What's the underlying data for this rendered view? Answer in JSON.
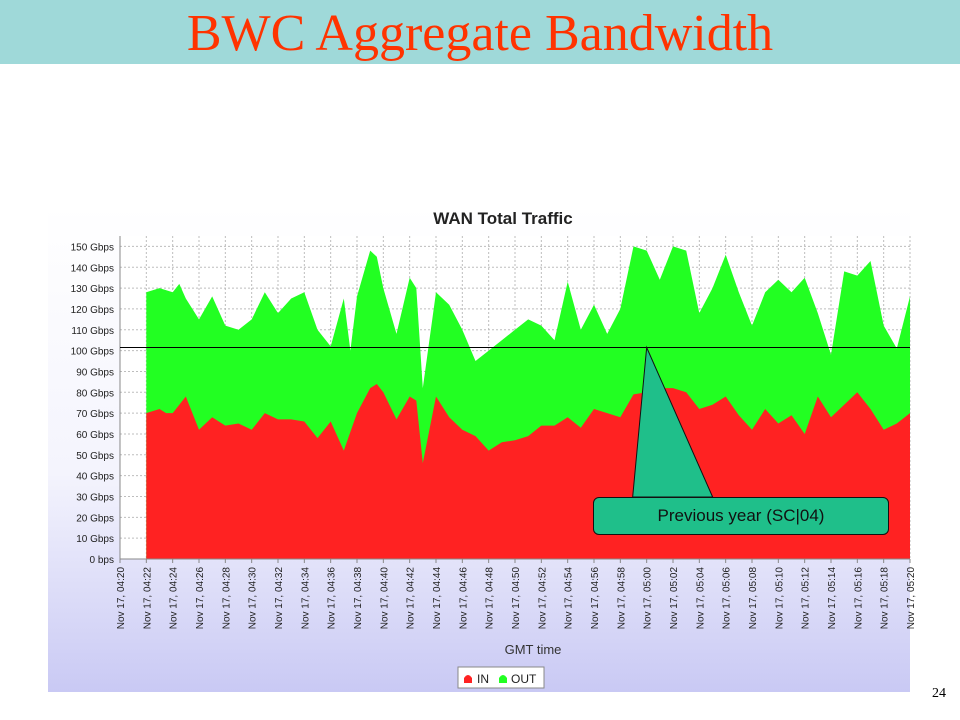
{
  "slide": {
    "title": "BWC Aggregate Bandwidth",
    "page_number": "24"
  },
  "annotation": {
    "label": "Previous year (SC|04)",
    "line_value_gbps": 101.5,
    "pointer_time": "05:00"
  },
  "colors": {
    "in": "#ff2222",
    "out": "#22ff22",
    "title": "#ff3300",
    "title_band": "#9fd9d9",
    "callout": "#1fbf8a"
  },
  "chart_data": {
    "type": "area",
    "stacked": true,
    "title": "WAN Total Traffic",
    "xlabel": "GMT time",
    "ylabel": "",
    "ylim": [
      0,
      155
    ],
    "yticks": [
      {
        "value": 0,
        "label": "0 bps"
      },
      {
        "value": 10,
        "label": "10 Gbps"
      },
      {
        "value": 20,
        "label": "20 Gbps"
      },
      {
        "value": 30,
        "label": "30 Gbps"
      },
      {
        "value": 40,
        "label": "40 Gbps"
      },
      {
        "value": 50,
        "label": "50 Gbps"
      },
      {
        "value": 60,
        "label": "60 Gbps"
      },
      {
        "value": 70,
        "label": "70 Gbps"
      },
      {
        "value": 80,
        "label": "80 Gbps"
      },
      {
        "value": 90,
        "label": "90 Gbps"
      },
      {
        "value": 100,
        "label": "100 Gbps"
      },
      {
        "value": 110,
        "label": "110 Gbps"
      },
      {
        "value": 120,
        "label": "120 Gbps"
      },
      {
        "value": 130,
        "label": "130 Gbps"
      },
      {
        "value": 140,
        "label": "140 Gbps"
      },
      {
        "value": 150,
        "label": "150 Gbps"
      }
    ],
    "xrange": [
      "04:20",
      "05:20"
    ],
    "xticks": [
      {
        "value": "04:20",
        "label": "Nov 17, 04:20"
      },
      {
        "value": "04:22",
        "label": "Nov 17, 04:22"
      },
      {
        "value": "04:24",
        "label": "Nov 17, 04:24"
      },
      {
        "value": "04:26",
        "label": "Nov 17, 04:26"
      },
      {
        "value": "04:28",
        "label": "Nov 17, 04:28"
      },
      {
        "value": "04:30",
        "label": "Nov 17, 04:30"
      },
      {
        "value": "04:32",
        "label": "Nov 17, 04:32"
      },
      {
        "value": "04:34",
        "label": "Nov 17, 04:34"
      },
      {
        "value": "04:36",
        "label": "Nov 17, 04:36"
      },
      {
        "value": "04:38",
        "label": "Nov 17, 04:38"
      },
      {
        "value": "04:40",
        "label": "Nov 17, 04:40"
      },
      {
        "value": "04:42",
        "label": "Nov 17, 04:42"
      },
      {
        "value": "04:44",
        "label": "Nov 17, 04:44"
      },
      {
        "value": "04:46",
        "label": "Nov 17, 04:46"
      },
      {
        "value": "04:48",
        "label": "Nov 17, 04:48"
      },
      {
        "value": "04:50",
        "label": "Nov 17, 04:50"
      },
      {
        "value": "04:52",
        "label": "Nov 17, 04:52"
      },
      {
        "value": "04:54",
        "label": "Nov 17, 04:54"
      },
      {
        "value": "04:56",
        "label": "Nov 17, 04:56"
      },
      {
        "value": "04:58",
        "label": "Nov 17, 04:58"
      },
      {
        "value": "05:00",
        "label": "Nov 17, 05:00"
      },
      {
        "value": "05:02",
        "label": "Nov 17, 05:02"
      },
      {
        "value": "05:04",
        "label": "Nov 17, 05:04"
      },
      {
        "value": "05:06",
        "label": "Nov 17, 05:06"
      },
      {
        "value": "05:08",
        "label": "Nov 17, 05:08"
      },
      {
        "value": "05:10",
        "label": "Nov 17, 05:10"
      },
      {
        "value": "05:12",
        "label": "Nov 17, 05:12"
      },
      {
        "value": "05:14",
        "label": "Nov 17, 05:14"
      },
      {
        "value": "05:16",
        "label": "Nov 17, 05:16"
      },
      {
        "value": "05:18",
        "label": "Nov 17, 05:18"
      },
      {
        "value": "05:20",
        "label": "Nov 17, 05:20"
      }
    ],
    "grid": true,
    "legend": "bottom",
    "series": [
      {
        "name": "IN",
        "color": "#ff2222",
        "points": [
          [
            "04:22",
            70
          ],
          [
            "04:23",
            72
          ],
          [
            "04:23.5",
            70
          ],
          [
            "04:24",
            70
          ],
          [
            "04:25",
            78
          ],
          [
            "04:26",
            62
          ],
          [
            "04:27",
            68
          ],
          [
            "04:28",
            64
          ],
          [
            "04:29",
            65
          ],
          [
            "04:30",
            62
          ],
          [
            "04:31",
            70
          ],
          [
            "04:32",
            67
          ],
          [
            "04:33",
            67
          ],
          [
            "04:34",
            66
          ],
          [
            "04:35",
            58
          ],
          [
            "04:36",
            66
          ],
          [
            "04:37",
            52
          ],
          [
            "04:38",
            70
          ],
          [
            "04:39",
            82
          ],
          [
            "04:39.5",
            84
          ],
          [
            "04:40",
            80
          ],
          [
            "04:41",
            67
          ],
          [
            "04:42",
            78
          ],
          [
            "04:42.5",
            76
          ],
          [
            "04:43",
            46
          ],
          [
            "04:44",
            78
          ],
          [
            "04:45",
            68
          ],
          [
            "04:46",
            62
          ],
          [
            "04:47",
            59
          ],
          [
            "04:48",
            52
          ],
          [
            "04:49",
            56
          ],
          [
            "04:50",
            57
          ],
          [
            "04:51",
            59
          ],
          [
            "04:52",
            64
          ],
          [
            "04:53",
            64
          ],
          [
            "04:54",
            68
          ],
          [
            "04:55",
            63
          ],
          [
            "04:56",
            72
          ],
          [
            "04:57",
            70
          ],
          [
            "04:58",
            68
          ],
          [
            "04:59",
            79
          ],
          [
            "05:00",
            80
          ],
          [
            "05:01",
            82
          ],
          [
            "05:02",
            82
          ],
          [
            "05:03",
            80
          ],
          [
            "05:04",
            72
          ],
          [
            "05:05",
            74
          ],
          [
            "05:06",
            78
          ],
          [
            "05:07",
            69
          ],
          [
            "05:08",
            62
          ],
          [
            "05:09",
            72
          ],
          [
            "05:10",
            65
          ],
          [
            "05:11",
            69
          ],
          [
            "05:12",
            60
          ],
          [
            "05:13",
            78
          ],
          [
            "05:14",
            68
          ],
          [
            "05:15",
            74
          ],
          [
            "05:16",
            80
          ],
          [
            "05:17",
            72
          ],
          [
            "05:18",
            62
          ],
          [
            "05:19",
            65
          ],
          [
            "05:20",
            70
          ]
        ]
      },
      {
        "name": "OUT",
        "color": "#22ff22",
        "points": [
          [
            "04:22",
            128
          ],
          [
            "04:23",
            130
          ],
          [
            "04:24",
            128
          ],
          [
            "04:24.5",
            132
          ],
          [
            "04:25",
            125
          ],
          [
            "04:26",
            115
          ],
          [
            "04:27",
            126
          ],
          [
            "04:28",
            112
          ],
          [
            "04:29",
            110
          ],
          [
            "04:30",
            115
          ],
          [
            "04:31",
            128
          ],
          [
            "04:32",
            118
          ],
          [
            "04:33",
            125
          ],
          [
            "04:34",
            128
          ],
          [
            "04:35",
            110
          ],
          [
            "04:36",
            102
          ],
          [
            "04:37",
            125
          ],
          [
            "04:37.5",
            100
          ],
          [
            "04:38",
            126
          ],
          [
            "04:39",
            148
          ],
          [
            "04:39.5",
            145
          ],
          [
            "04:40",
            130
          ],
          [
            "04:41",
            108
          ],
          [
            "04:42",
            135
          ],
          [
            "04:42.5",
            130
          ],
          [
            "04:43",
            82
          ],
          [
            "04:44",
            128
          ],
          [
            "04:45",
            122
          ],
          [
            "04:46",
            110
          ],
          [
            "04:47",
            95
          ],
          [
            "04:48",
            100
          ],
          [
            "04:49",
            105
          ],
          [
            "04:50",
            110
          ],
          [
            "04:51",
            115
          ],
          [
            "04:52",
            112
          ],
          [
            "04:53",
            105
          ],
          [
            "04:54",
            133
          ],
          [
            "04:55",
            110
          ],
          [
            "04:56",
            122
          ],
          [
            "04:57",
            108
          ],
          [
            "04:58",
            120
          ],
          [
            "04:59",
            150
          ],
          [
            "05:00",
            148
          ],
          [
            "05:01",
            134
          ],
          [
            "05:02",
            150
          ],
          [
            "05:03",
            148
          ],
          [
            "05:04",
            118
          ],
          [
            "05:05",
            130
          ],
          [
            "05:06",
            146
          ],
          [
            "05:07",
            128
          ],
          [
            "05:08",
            112
          ],
          [
            "05:09",
            128
          ],
          [
            "05:10",
            134
          ],
          [
            "05:11",
            128
          ],
          [
            "05:12",
            135
          ],
          [
            "05:13",
            118
          ],
          [
            "05:14",
            98
          ],
          [
            "05:15",
            138
          ],
          [
            "05:16",
            136
          ],
          [
            "05:17",
            143
          ],
          [
            "05:18",
            112
          ],
          [
            "05:19",
            101
          ],
          [
            "05:20",
            126
          ]
        ]
      }
    ]
  }
}
